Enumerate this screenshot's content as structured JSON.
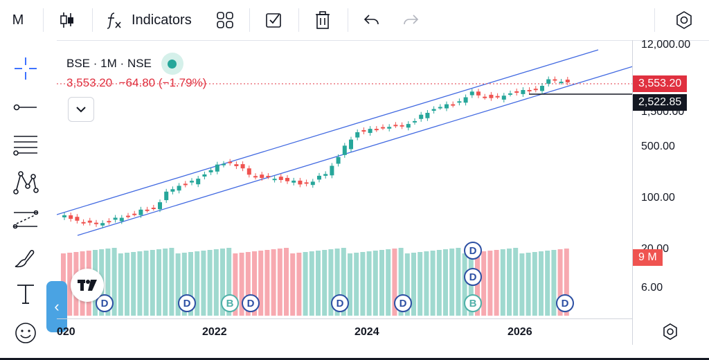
{
  "toolbar": {
    "symbol": "M",
    "indicators_label": "Indicators"
  },
  "legend": {
    "symbol": "BSE",
    "interval": "1M",
    "exchange": "NSE",
    "separator": "·",
    "price": "3,553.20",
    "change": "−64.80",
    "change_pct": "(−1.79%)"
  },
  "price_axis": {
    "ticks": [
      "12,000.00",
      "1,500.00",
      "500.00",
      "100.00",
      "20.00",
      "6.00"
    ],
    "last_price_tag": "3,553.20",
    "crosshair_tag": "2,522.85",
    "volume_tag": "9 M"
  },
  "time_axis": {
    "labels": [
      "020",
      "2022",
      "2024",
      "2026"
    ]
  },
  "events": {
    "badges": [
      "D",
      "D",
      "B",
      "D",
      "D",
      "D",
      "D",
      "D",
      "B",
      "D"
    ]
  },
  "colors": {
    "up": "#26a69a",
    "down": "#ef5350",
    "volume_up": "#9fd9cf",
    "volume_down": "#f7a9b0",
    "channel": "#4169e1",
    "last_price": "#e0303f",
    "crosshair": "#131722"
  },
  "icons": {
    "toolbar": [
      "candles-icon",
      "fx-icon",
      "templates-icon",
      "checkbox-icon",
      "trash-icon",
      "undo-icon",
      "redo-icon",
      "settings-icon"
    ],
    "left": [
      "crosshair-icon",
      "trendline-icon",
      "fib-icon",
      "pattern-icon",
      "measure-icon",
      "brush-icon",
      "text-icon",
      "emoji-icon"
    ]
  }
}
